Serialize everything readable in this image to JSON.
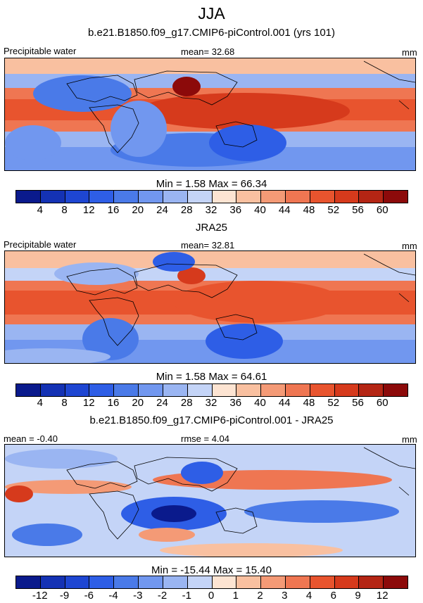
{
  "figure": {
    "season": "JJA"
  },
  "colors": {
    "scale": [
      "#0a1a8c",
      "#1432b4",
      "#1e46d2",
      "#2e5ee6",
      "#4a7ae8",
      "#7197ef",
      "#9ab5f2",
      "#c4d4f7",
      "#fde4d2",
      "#f9c0a0",
      "#f49a76",
      "#ef7652",
      "#e8542e",
      "#d63a1c",
      "#b42514",
      "#8c0a0a"
    ]
  },
  "panels": [
    {
      "title": "b.e21.B1850.f09_g17.CMIP6-piControl.001 (yrs 101)",
      "left_label": "Precipitable water",
      "center_label": "mean=  32.68",
      "units": "mm",
      "minmax": "Min =   1.58 Max =  66.34",
      "chart_data": {
        "type": "heatmap",
        "field": "Precipitable water (model)",
        "units": "mm",
        "mean": 32.68,
        "min": 1.58,
        "max": 66.34,
        "contour_levels": [
          4,
          8,
          12,
          16,
          20,
          24,
          28,
          32,
          36,
          40,
          44,
          48,
          52,
          56,
          60
        ],
        "colorbar_labels": [
          "4",
          "8",
          "12",
          "16",
          "20",
          "24",
          "28",
          "32",
          "36",
          "40",
          "44",
          "48",
          "52",
          "56",
          "60"
        ]
      }
    },
    {
      "title": "JRA25",
      "left_label": "Precipitable water",
      "center_label": "mean=  32.81",
      "units": "mm",
      "minmax": "Min =   1.58 Max =  64.61",
      "chart_data": {
        "type": "heatmap",
        "field": "Precipitable water (JRA25 reanalysis)",
        "units": "mm",
        "mean": 32.81,
        "min": 1.58,
        "max": 64.61,
        "contour_levels": [
          4,
          8,
          12,
          16,
          20,
          24,
          28,
          32,
          36,
          40,
          44,
          48,
          52,
          56,
          60
        ],
        "colorbar_labels": [
          "4",
          "8",
          "12",
          "16",
          "20",
          "24",
          "28",
          "32",
          "36",
          "40",
          "44",
          "48",
          "52",
          "56",
          "60"
        ]
      }
    },
    {
      "title": "b.e21.B1850.f09_g17.CMIP6-piControl.001 - JRA25",
      "left_label": "mean =  -0.40",
      "center_label": "rmse =   4.04",
      "units": "mm",
      "minmax": "Min = -15.44 Max =  15.40",
      "chart_data": {
        "type": "heatmap",
        "field": "Precipitable water difference (model - JRA25)",
        "units": "mm",
        "mean": -0.4,
        "rmse": 4.04,
        "min": -15.44,
        "max": 15.4,
        "contour_levels": [
          -12,
          -9,
          -6,
          -4,
          -3,
          -2,
          -1,
          0,
          1,
          2,
          3,
          4,
          6,
          9,
          12
        ],
        "colorbar_labels": [
          "-12",
          "-9",
          "-6",
          "-4",
          "-3",
          "-2",
          "-1",
          "0",
          "1",
          "2",
          "3",
          "4",
          "6",
          "9",
          "12"
        ]
      }
    }
  ]
}
